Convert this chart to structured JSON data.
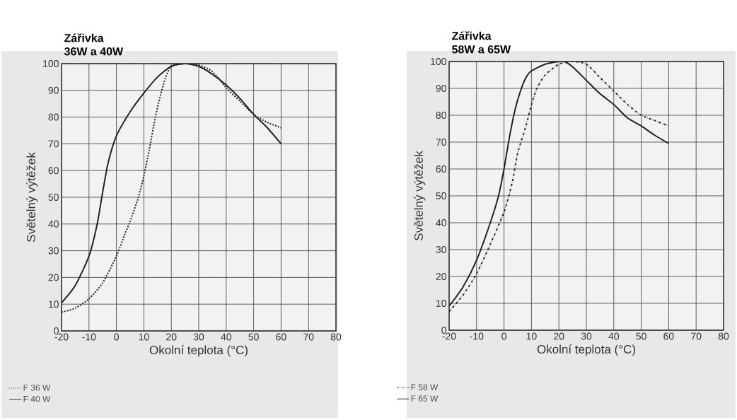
{
  "chart_data": [
    {
      "type": "line",
      "title": "Zářivka",
      "subtitle": "36W a 40W",
      "xlabel": "Okolní teplota (°C)",
      "ylabel": "Světelný výtěžek",
      "xlim": [
        -20,
        80
      ],
      "ylim": [
        0,
        100
      ],
      "xticks": [
        -20,
        -10,
        0,
        10,
        20,
        30,
        40,
        50,
        60,
        70,
        80
      ],
      "yticks": [
        0,
        10,
        20,
        30,
        40,
        50,
        60,
        70,
        80,
        90,
        100
      ],
      "grid": true,
      "legend": "bottom left",
      "series": [
        {
          "name": "F 36 W",
          "color": "#222222",
          "line_style": "dotted",
          "x": [
            -20,
            -15,
            -10,
            -5,
            0,
            3,
            5,
            8,
            10,
            12,
            14,
            16,
            18,
            20,
            25,
            30,
            35,
            40,
            45,
            50,
            55,
            60
          ],
          "values": [
            7,
            8.5,
            12,
            18,
            28,
            36,
            41,
            50,
            58,
            68,
            79,
            88,
            95,
            99,
            100,
            99.5,
            97,
            91,
            86,
            81,
            78,
            76
          ]
        },
        {
          "name": "F 40 W",
          "color": "#222222",
          "line_style": "solid",
          "x": [
            -20,
            -15,
            -10,
            -7,
            -5,
            -3,
            0,
            5,
            10,
            15,
            20,
            25,
            30,
            35,
            40,
            45,
            50,
            55,
            60
          ],
          "values": [
            10.5,
            17,
            28,
            40,
            52,
            63,
            73,
            82,
            89,
            95,
            99,
            100,
            99,
            96,
            92,
            87,
            81,
            76,
            70
          ]
        }
      ]
    },
    {
      "type": "line",
      "title": "Zářivka",
      "subtitle": "58W a 65W",
      "xlabel": "Okolní teplota (°C)",
      "ylabel": "Světelný výtěžek",
      "xlim": [
        -20,
        80
      ],
      "ylim": [
        0,
        100
      ],
      "xticks": [
        -20,
        -10,
        0,
        10,
        20,
        30,
        40,
        50,
        60,
        70,
        80
      ],
      "yticks": [
        0,
        10,
        20,
        30,
        40,
        50,
        60,
        70,
        80,
        90,
        100
      ],
      "grid": true,
      "legend": "bottom left",
      "series": [
        {
          "name": "F 58 W",
          "color": "#222222",
          "line_style": "dashdot",
          "x": [
            -20,
            -15,
            -10,
            -5,
            0,
            3,
            5,
            8,
            10,
            12,
            15,
            20,
            25,
            30,
            35,
            40,
            45,
            50,
            55,
            60
          ],
          "values": [
            7,
            13,
            21,
            32,
            44,
            55,
            66,
            76,
            84,
            90,
            95,
            99,
            100,
            99,
            94,
            89,
            84,
            80,
            78,
            76
          ]
        },
        {
          "name": "F 65 W",
          "color": "#222222",
          "line_style": "solid",
          "x": [
            -20,
            -15,
            -10,
            -5,
            -2,
            0,
            2,
            4,
            6,
            8,
            10,
            15,
            20,
            22,
            25,
            30,
            35,
            40,
            45,
            50,
            55,
            60
          ],
          "values": [
            9,
            16,
            26,
            40,
            50,
            60,
            72,
            82,
            89,
            94,
            96.5,
            99,
            100,
            100,
            98,
            93,
            88,
            84,
            79,
            76,
            72.5,
            69.5
          ]
        }
      ]
    }
  ]
}
